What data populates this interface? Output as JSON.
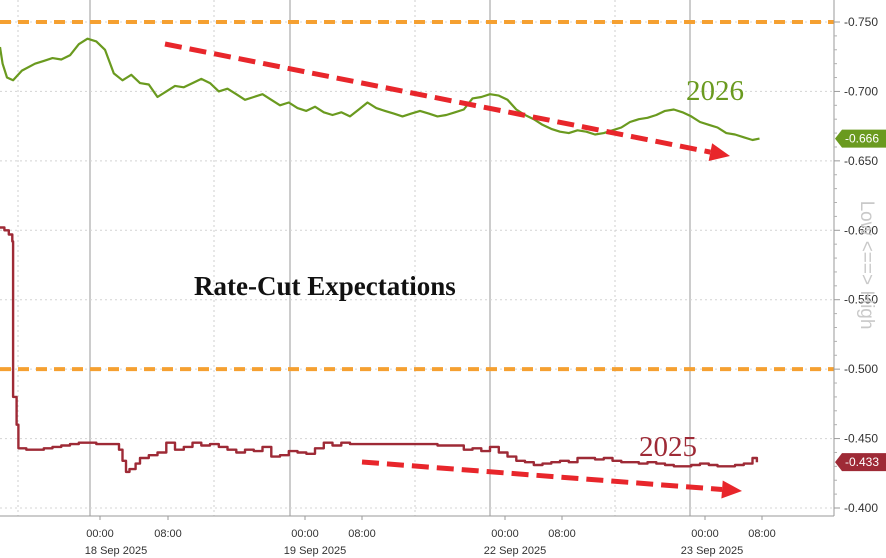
{
  "chart_data": {
    "type": "line",
    "title": "Rate-Cut Expectations",
    "ylabel": "Low <==> High",
    "ylim": [
      -0.75,
      -0.4
    ],
    "y_inverted": true,
    "y_ticks": [
      "-0.750",
      "-0.700",
      "-0.650",
      "-0.600",
      "-0.550",
      "-0.500",
      "-0.450",
      "-0.400"
    ],
    "x_tick_labels": [
      "00:00",
      "08:00",
      "00:00",
      "08:00",
      "00:00",
      "08:00",
      "00:00",
      "08:00"
    ],
    "x_date_labels": [
      "18 Sep 2025",
      "19 Sep 2025",
      "22 Sep 2025",
      "23 Sep 2025"
    ],
    "reference_lines": [
      -0.75,
      -0.5
    ],
    "reference_color": "#f5a031",
    "trend_arrow_color": "#e8262b",
    "series": [
      {
        "name": "2026",
        "color": "#6a9a1f",
        "last_value_label": "-0.666",
        "x": [
          0,
          0.3,
          0.8,
          1.5,
          2.5,
          4,
          5,
          6,
          7,
          8,
          9,
          10,
          11,
          12,
          13,
          14,
          15,
          16,
          17,
          18,
          19,
          20,
          21,
          22,
          23,
          24,
          25,
          26,
          27,
          28,
          29,
          30,
          31,
          32,
          33,
          34,
          35,
          36,
          37,
          38,
          39,
          40,
          41,
          42,
          43,
          44,
          45,
          46,
          47,
          48,
          49,
          50,
          51,
          52,
          53,
          54,
          55,
          56,
          57,
          58,
          59,
          60,
          61,
          62,
          63,
          64,
          65,
          66,
          67,
          68,
          69,
          70,
          71,
          72,
          73,
          74,
          75,
          76,
          77,
          78,
          79,
          80,
          81,
          82,
          83,
          84,
          85,
          86,
          86.8
        ],
        "values": [
          -0.732,
          -0.72,
          -0.71,
          -0.708,
          -0.715,
          -0.72,
          -0.722,
          -0.724,
          -0.723,
          -0.726,
          -0.734,
          -0.738,
          -0.736,
          -0.73,
          -0.713,
          -0.708,
          -0.712,
          -0.706,
          -0.705,
          -0.696,
          -0.7,
          -0.704,
          -0.703,
          -0.706,
          -0.709,
          -0.706,
          -0.7,
          -0.702,
          -0.698,
          -0.694,
          -0.696,
          -0.698,
          -0.694,
          -0.69,
          -0.692,
          -0.688,
          -0.686,
          -0.689,
          -0.685,
          -0.683,
          -0.685,
          -0.682,
          -0.687,
          -0.692,
          -0.688,
          -0.686,
          -0.684,
          -0.682,
          -0.684,
          -0.686,
          -0.684,
          -0.682,
          -0.683,
          -0.685,
          -0.687,
          -0.695,
          -0.696,
          -0.698,
          -0.697,
          -0.694,
          -0.687,
          -0.683,
          -0.68,
          -0.676,
          -0.673,
          -0.671,
          -0.67,
          -0.672,
          -0.671,
          -0.669,
          -0.67,
          -0.672,
          -0.674,
          -0.678,
          -0.68,
          -0.681,
          -0.683,
          -0.686,
          -0.687,
          -0.685,
          -0.682,
          -0.678,
          -0.676,
          -0.674,
          -0.67,
          -0.669,
          -0.667,
          -0.665,
          -0.666
        ]
      },
      {
        "name": "2025",
        "color": "#9e2a36",
        "last_value_label": "-0.433",
        "x": [
          0,
          0.5,
          1,
          1.4,
          1.5,
          1.9,
          2.1,
          3,
          5,
          6,
          7,
          8,
          9,
          10,
          11,
          12,
          13,
          13.6,
          14,
          14.4,
          14.8,
          15.5,
          16,
          17,
          18,
          19,
          20,
          21,
          22,
          23,
          24,
          25,
          26,
          27,
          28,
          29,
          30,
          31,
          32,
          33,
          34,
          35,
          36,
          37,
          38,
          39,
          40,
          41,
          42,
          43,
          44,
          45,
          46,
          47,
          48,
          49,
          50,
          51,
          52,
          53,
          54,
          55,
          56,
          57,
          58,
          59,
          60,
          61,
          62,
          63,
          64,
          65,
          66,
          67,
          68,
          69,
          70,
          71,
          72,
          73,
          74,
          75,
          76,
          77,
          78,
          79,
          80,
          81,
          82,
          83,
          84,
          85,
          86,
          86.5
        ],
        "values": [
          -0.602,
          -0.6,
          -0.597,
          -0.592,
          -0.48,
          -0.46,
          -0.443,
          -0.442,
          -0.443,
          -0.444,
          -0.445,
          -0.446,
          -0.447,
          -0.447,
          -0.446,
          -0.446,
          -0.446,
          -0.442,
          -0.434,
          -0.426,
          -0.428,
          -0.432,
          -0.436,
          -0.438,
          -0.44,
          -0.447,
          -0.442,
          -0.444,
          -0.447,
          -0.445,
          -0.446,
          -0.444,
          -0.442,
          -0.44,
          -0.442,
          -0.441,
          -0.444,
          -0.437,
          -0.438,
          -0.441,
          -0.44,
          -0.439,
          -0.443,
          -0.447,
          -0.445,
          -0.447,
          -0.446,
          -0.446,
          -0.446,
          -0.446,
          -0.446,
          -0.446,
          -0.446,
          -0.446,
          -0.446,
          -0.446,
          -0.445,
          -0.445,
          -0.445,
          -0.442,
          -0.443,
          -0.441,
          -0.444,
          -0.44,
          -0.437,
          -0.434,
          -0.433,
          -0.431,
          -0.432,
          -0.433,
          -0.434,
          -0.433,
          -0.436,
          -0.436,
          -0.435,
          -0.436,
          -0.434,
          -0.433,
          -0.433,
          -0.432,
          -0.433,
          -0.432,
          -0.431,
          -0.43,
          -0.43,
          -0.431,
          -0.432,
          -0.431,
          -0.43,
          -0.43,
          -0.431,
          -0.432,
          -0.436,
          -0.433
        ]
      }
    ]
  }
}
